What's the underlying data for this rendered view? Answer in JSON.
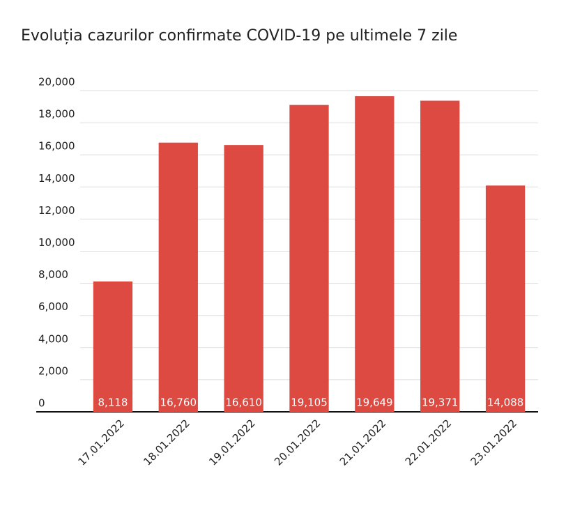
{
  "chart_data": {
    "type": "bar",
    "title": "Evoluția cazurilor confirmate COVID-19 pe ultimele 7 zile",
    "categories": [
      "17.01.2022",
      "18.01.2022",
      "19.01.2022",
      "20.01.2022",
      "21.01.2022",
      "22.01.2022",
      "23.01.2022"
    ],
    "values": [
      8118,
      16760,
      16610,
      19105,
      19649,
      19371,
      14088
    ],
    "value_labels": [
      "8,118",
      "16,760",
      "16,610",
      "19,105",
      "19,649",
      "19,371",
      "14,088"
    ],
    "color": "#dc4a42",
    "ylim": [
      0,
      20000
    ],
    "yticks": [
      0,
      {
        "value": 2000,
        "label": "2,000"
      },
      {
        "value": 4000,
        "label": "4,000"
      },
      {
        "value": 6000,
        "label": "6,000"
      },
      {
        "value": 8000,
        "label": "8,000"
      },
      {
        "value": 10000,
        "label": "10,000"
      },
      {
        "value": 12000,
        "label": "12,000"
      },
      {
        "value": 14000,
        "label": "14,000"
      },
      {
        "value": 16000,
        "label": "16,000"
      },
      {
        "value": 18000,
        "label": "18,000"
      },
      {
        "value": 20000,
        "label": "20,000"
      }
    ],
    "grid": true
  }
}
